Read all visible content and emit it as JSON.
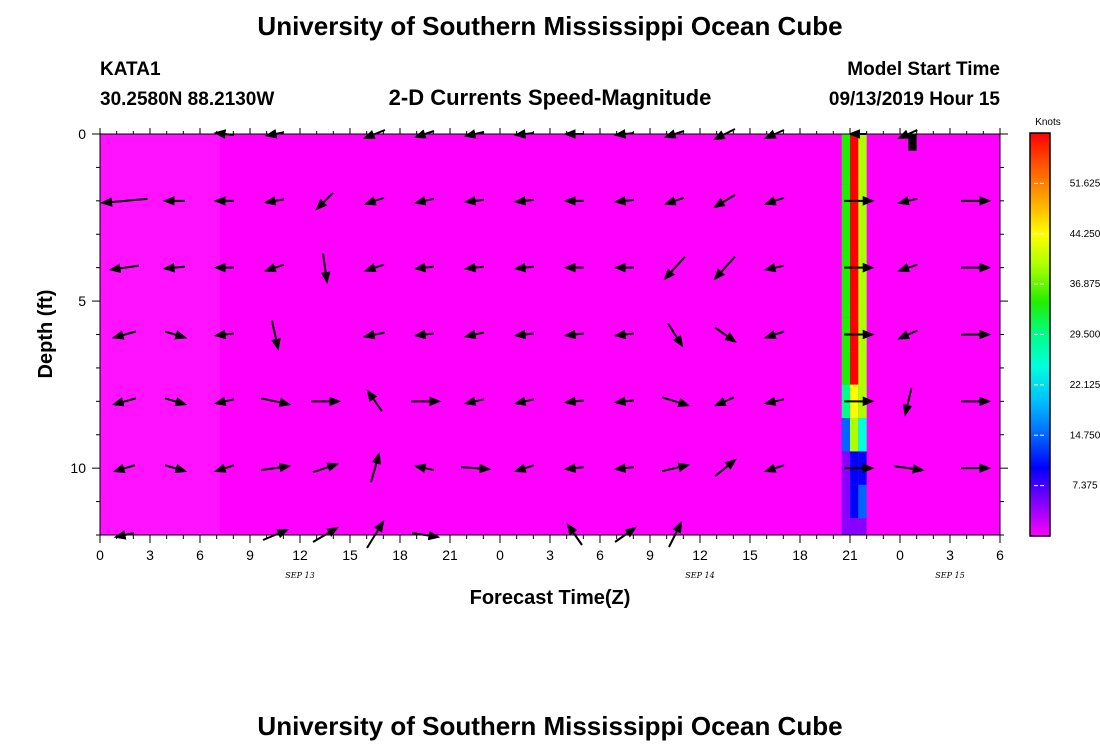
{
  "header": {
    "title_top": "University of Southern Mississippi Ocean Cube",
    "station_id": "KATA1",
    "station_coords": "30.2580N 88.2130W",
    "subtitle": "2-D Currents Speed-Magnitude",
    "model_label": "Model Start Time",
    "model_start": "09/13/2019 Hour 15",
    "title_bottom": "University of Southern Mississippi Ocean Cube"
  },
  "colors": {
    "background_field": "#ff00ff",
    "arrow": "#000000",
    "colormap": [
      "#ff00ff",
      "#8800ff",
      "#0000ff",
      "#0066ff",
      "#00bbff",
      "#00ffdd",
      "#00ff88",
      "#22ee00",
      "#aaff00",
      "#ffff00",
      "#ffaa00",
      "#ff5500",
      "#ff0000"
    ]
  },
  "chart_data": {
    "type": "heatmap",
    "title": "2-D Currents Speed-Magnitude",
    "xlabel": "Forecast Time(Z)",
    "ylabel": "Depth (ft)",
    "x_ticks": [
      "0",
      "3",
      "6",
      "9",
      "12",
      "15",
      "18",
      "21",
      "0",
      "3",
      "6",
      "9",
      "12",
      "15",
      "18",
      "21",
      "0",
      "3",
      "6"
    ],
    "x_range_hours": [
      0,
      54
    ],
    "date_labels": [
      {
        "label": "SEP 13",
        "hour": 12
      },
      {
        "label": "SEP 14",
        "hour": 36
      },
      {
        "label": "SEP 15",
        "hour": 51
      }
    ],
    "y_ticks": [
      "0",
      "5",
      "10"
    ],
    "y_range_ft": [
      0,
      12
    ],
    "y_inverted": true,
    "colorbar": {
      "unit": "Knots",
      "range": [
        0,
        59
      ],
      "ticks": [
        "51.625",
        "44.250",
        "36.875",
        "29.500",
        "22.125",
        "14.750",
        "7.375"
      ],
      "tick_values": [
        51.625,
        44.25,
        36.875,
        29.5,
        22.125,
        14.75,
        7.375
      ]
    },
    "speed_columns": [
      {
        "hour_start": 44.5,
        "hour_end": 45.0,
        "top_ft": [
          0,
          1.5,
          3.5,
          5.5,
          7.5,
          8.5,
          9.5,
          11.5
        ],
        "values": [
          35,
          35,
          35,
          35,
          28,
          14,
          7,
          3
        ]
      },
      {
        "hour_start": 45.0,
        "hour_end": 45.5,
        "top_ft": [
          0,
          6.5,
          7.5,
          8.5,
          9.5,
          10.5,
          11.5
        ],
        "values": [
          58,
          58,
          44,
          38,
          9,
          11,
          5
        ]
      },
      {
        "hour_start": 45.5,
        "hour_end": 46.0,
        "top_ft": [
          0,
          8.5,
          9.5,
          10.5,
          11.5
        ],
        "values": [
          37,
          25,
          11,
          14,
          6
        ]
      },
      {
        "hour_start": 48.5,
        "hour_end": 49.0,
        "top_ft": [
          0
        ],
        "bottom_ft": [
          0.5
        ],
        "values": [
          0
        ],
        "color": "#000000"
      }
    ],
    "vector_rows_ft": [
      0,
      2,
      4,
      6,
      8,
      10,
      12
    ],
    "vector_columns_hour": [
      1.5,
      4.5,
      7.5,
      10.5,
      13.5,
      16.5,
      19.5,
      22.5,
      25.5,
      28.5,
      31.5,
      34.5,
      37.5,
      40.5,
      45.5,
      48.5,
      52.5
    ],
    "vectors_dx_dy": [
      [
        null,
        null,
        [
          -18,
          -2
        ],
        [
          -16,
          3
        ],
        null,
        [
          -20,
          8
        ],
        [
          -18,
          6
        ],
        [
          -18,
          4
        ],
        [
          -18,
          2
        ],
        [
          -18,
          0
        ],
        [
          -18,
          2
        ],
        [
          -18,
          6
        ],
        [
          -20,
          10
        ],
        [
          -18,
          8
        ],
        [
          -16,
          0
        ],
        [
          -18,
          8
        ],
        null
      ],
      [
        [
          -45,
          4
        ],
        [
          -20,
          0
        ],
        [
          -18,
          0
        ],
        [
          -18,
          3
        ],
        [
          -16,
          16
        ],
        [
          -18,
          6
        ],
        [
          -18,
          4
        ],
        [
          -18,
          2
        ],
        [
          -18,
          2
        ],
        [
          -18,
          0
        ],
        [
          -18,
          2
        ],
        [
          -18,
          6
        ],
        [
          -20,
          12
        ],
        [
          -18,
          6
        ],
        [
          28,
          0
        ],
        [
          -18,
          4
        ],
        [
          28,
          0
        ]
      ],
      [
        [
          -28,
          4
        ],
        [
          -20,
          2
        ],
        [
          -18,
          0
        ],
        [
          -18,
          6
        ],
        [
          4,
          28
        ],
        [
          -18,
          6
        ],
        [
          -18,
          2
        ],
        [
          -18,
          2
        ],
        [
          -18,
          2
        ],
        [
          -18,
          0
        ],
        [
          -18,
          0
        ],
        [
          -20,
          22
        ],
        [
          -20,
          22
        ],
        [
          -18,
          4
        ],
        [
          28,
          0
        ],
        [
          -18,
          6
        ],
        [
          28,
          0
        ]
      ],
      [
        [
          -22,
          6
        ],
        [
          20,
          6
        ],
        [
          -18,
          2
        ],
        [
          6,
          28
        ],
        null,
        [
          -20,
          4
        ],
        [
          -18,
          2
        ],
        [
          -18,
          4
        ],
        [
          -18,
          2
        ],
        [
          -18,
          2
        ],
        [
          -18,
          2
        ],
        [
          14,
          22
        ],
        [
          20,
          14
        ],
        [
          -18,
          6
        ],
        [
          28,
          0
        ],
        [
          -18,
          8
        ],
        [
          28,
          0
        ]
      ],
      [
        [
          -22,
          6
        ],
        [
          20,
          6
        ],
        [
          -18,
          4
        ],
        [
          28,
          6
        ],
        [
          28,
          0
        ],
        [
          -14,
          -20
        ],
        [
          28,
          0
        ],
        [
          -18,
          4
        ],
        [
          -18,
          4
        ],
        [
          -18,
          2
        ],
        [
          -18,
          2
        ],
        [
          26,
          8
        ],
        [
          -18,
          8
        ],
        [
          -18,
          4
        ],
        [
          28,
          0
        ],
        [
          -6,
          26
        ],
        [
          28,
          0
        ]
      ],
      [
        [
          -20,
          6
        ],
        [
          20,
          6
        ],
        [
          -18,
          6
        ],
        [
          28,
          -4
        ],
        [
          24,
          -8
        ],
        [
          8,
          -28
        ],
        [
          -18,
          -4
        ],
        [
          28,
          2
        ],
        [
          -18,
          6
        ],
        [
          -18,
          2
        ],
        [
          -18,
          2
        ],
        [
          26,
          -6
        ],
        [
          20,
          -16
        ],
        [
          -18,
          6
        ],
        [
          28,
          0
        ],
        [
          28,
          4
        ],
        [
          28,
          0
        ]
      ],
      [
        [
          -18,
          4
        ],
        null,
        null,
        [
          24,
          -10
        ],
        [
          24,
          -14
        ],
        [
          16,
          -26
        ],
        [
          26,
          4
        ],
        null,
        null,
        [
          -14,
          -20
        ],
        [
          20,
          -14
        ],
        [
          12,
          -24
        ],
        null,
        null,
        null,
        null,
        null
      ]
    ]
  }
}
